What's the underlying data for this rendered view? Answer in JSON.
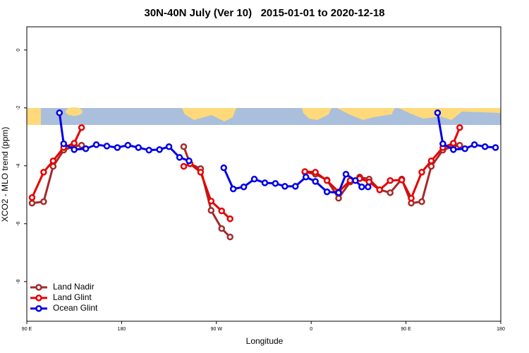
{
  "chart_data": {
    "type": "line",
    "title": "30N-40N July (Ver 10)   2015-01-01 to 2020-12-18",
    "xlabel": "Longitude",
    "ylabel": "XCO2 - MLO trend (ppm)",
    "xlim": [
      90,
      540
    ],
    "ylim": [
      -9.37,
      0.8
    ],
    "xticks": [
      {
        "value": 90,
        "label": "90 E"
      },
      180,
      {
        "value": 270,
        "label": "90 W"
      },
      {
        "value": 360,
        "label": "0"
      },
      {
        "value": 450,
        "label": "90 E"
      },
      {
        "value": 540,
        "label": "180"
      }
    ],
    "yticks": [
      0,
      -2,
      -4,
      -6,
      -8
    ],
    "legend": "lower left",
    "series": [
      {
        "name": "Land Nadir",
        "color": "#a52a2a",
        "x": [
          95,
          106,
          115,
          125,
          135,
          142,
          null,
          239,
          245,
          255,
          265,
          275,
          283,
          null,
          354,
          364,
          375,
          386,
          397,
          406,
          415,
          425,
          435,
          446,
          455,
          465,
          474,
          485,
          495,
          501
        ],
        "values": [
          -5.29,
          -5.24,
          -4.02,
          -3.46,
          -3.32,
          -3.29,
          null,
          -3.34,
          -3.93,
          -4.1,
          -5.54,
          -6.17,
          -6.46,
          null,
          -4.22,
          -4.29,
          -4.49,
          -5.12,
          -4.56,
          -4.39,
          -4.46,
          -4.83,
          -4.93,
          -4.46,
          -5.29,
          -5.24,
          -4.02,
          -3.46,
          -3.32,
          -3.29
        ]
      },
      {
        "name": "Land Glint",
        "color": "#e60000",
        "x": [
          95,
          106,
          115,
          125,
          135,
          142,
          null,
          239,
          245,
          255,
          265,
          275,
          283,
          null,
          354,
          364,
          375,
          386,
          397,
          406,
          415,
          425,
          435,
          446,
          455,
          465,
          474,
          485,
          495,
          501
        ],
        "values": [
          -5.1,
          -4.22,
          -3.83,
          -3.37,
          -3.22,
          -2.68,
          null,
          -4.02,
          -3.93,
          -4.22,
          -5.22,
          -5.56,
          -5.83,
          null,
          -4.2,
          -4.22,
          -4.51,
          -4.9,
          -4.51,
          -4.44,
          -4.56,
          -4.83,
          -4.51,
          -4.49,
          -5.12,
          -4.22,
          -3.83,
          -3.37,
          -3.22,
          -2.68
        ]
      },
      {
        "name": "Ocean Glint",
        "color": "#0000e6",
        "x": [
          121,
          125,
          135,
          146,
          156,
          166,
          176,
          186,
          196,
          206,
          216,
          225,
          235,
          244,
          null,
          277,
          286,
          296,
          306,
          316,
          326,
          335,
          345,
          355,
          364,
          375,
          386,
          393,
          402,
          408,
          414,
          null,
          480,
          485,
          495,
          506,
          515,
          525,
          535
        ],
        "values": [
          -2.17,
          -3.24,
          -3.44,
          -3.41,
          -3.27,
          -3.32,
          -3.37,
          -3.29,
          -3.37,
          -3.46,
          -3.44,
          -3.34,
          -3.71,
          -3.83,
          null,
          -4.07,
          -4.8,
          -4.73,
          -4.46,
          -4.59,
          -4.61,
          -4.71,
          -4.71,
          -4.39,
          -4.54,
          -4.9,
          -4.93,
          -4.29,
          -4.51,
          -4.73,
          -4.73,
          null,
          -2.17,
          -3.24,
          -3.44,
          -3.41,
          -3.27,
          -3.34,
          -3.37
        ]
      }
    ]
  }
}
